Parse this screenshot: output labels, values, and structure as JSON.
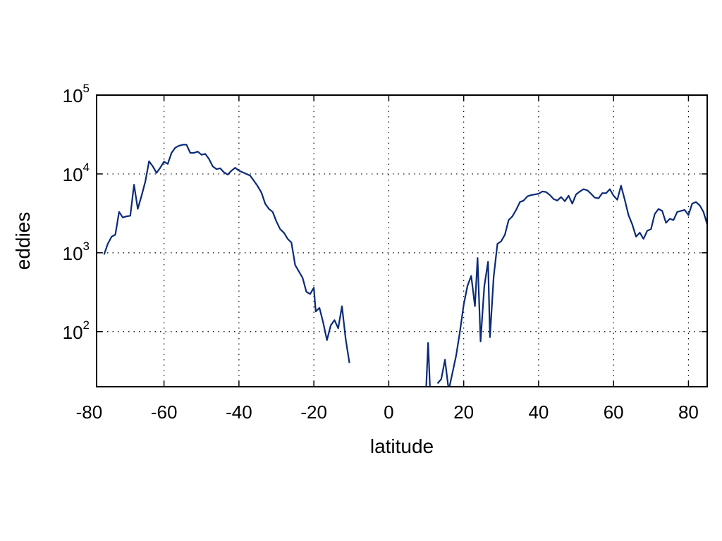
{
  "chart_data": {
    "type": "line",
    "xlabel": "latitude",
    "ylabel": "eddies",
    "xlim": [
      -78,
      85
    ],
    "ylim": [
      20,
      100000
    ],
    "yscale": "log",
    "grid": true,
    "xticks": [
      -80,
      -60,
      -40,
      -20,
      0,
      20,
      40,
      60,
      80
    ],
    "xtick_labels": [
      "-80",
      "-60",
      "-40",
      "-20",
      "0",
      "20",
      "40",
      "60",
      "80"
    ],
    "yticks": [
      100,
      1000,
      10000,
      100000
    ],
    "ytick_labels": [
      {
        "base": "10",
        "exp": "2"
      },
      {
        "base": "10",
        "exp": "3"
      },
      {
        "base": "10",
        "exp": "4"
      },
      {
        "base": "10",
        "exp": "5"
      }
    ],
    "line_color": "#0b2a78",
    "series": [
      {
        "segments": [
          [
            [
              -76,
              950
            ],
            [
              -75,
              1300
            ],
            [
              -74,
              1600
            ],
            [
              -73,
              1700
            ],
            [
              -72,
              3300
            ],
            [
              -71,
              2800
            ],
            [
              -70,
              2900
            ],
            [
              -69,
              2950
            ],
            [
              -68,
              7300
            ],
            [
              -67,
              3600
            ],
            [
              -66,
              5300
            ],
            [
              -65,
              8000
            ],
            [
              -64,
              14500
            ],
            [
              -63,
              12500
            ],
            [
              -62,
              10300
            ],
            [
              -61,
              12000
            ],
            [
              -60,
              14300
            ],
            [
              -59,
              13400
            ],
            [
              -58,
              18500
            ],
            [
              -57,
              21500
            ],
            [
              -56,
              22800
            ],
            [
              -55,
              23500
            ],
            [
              -54,
              23500
            ],
            [
              -53,
              18500
            ],
            [
              -52,
              18500
            ],
            [
              -51,
              19200
            ],
            [
              -50,
              17500
            ],
            [
              -49,
              18000
            ],
            [
              -48,
              15500
            ],
            [
              -47,
              12500
            ],
            [
              -46,
              11500
            ],
            [
              -45,
              11800
            ],
            [
              -44,
              10500
            ],
            [
              -43,
              9800
            ],
            [
              -42,
              11000
            ],
            [
              -41,
              12000
            ],
            [
              -40,
              11000
            ],
            [
              -39,
              10500
            ],
            [
              -38,
              10000
            ],
            [
              -37,
              9500
            ],
            [
              -36,
              8200
            ],
            [
              -35,
              7000
            ],
            [
              -34,
              5800
            ],
            [
              -33,
              4200
            ],
            [
              -32,
              3600
            ],
            [
              -31,
              3300
            ],
            [
              -30,
              2500
            ],
            [
              -29,
              2000
            ],
            [
              -28,
              1800
            ],
            [
              -27,
              1500
            ],
            [
              -26,
              1350
            ],
            [
              -25,
              700
            ],
            [
              -24,
              580
            ],
            [
              -23,
              480
            ],
            [
              -22,
              320
            ],
            [
              -21,
              300
            ],
            [
              -20,
              360
            ],
            [
              -19.5,
              180
            ],
            [
              -18.5,
              200
            ],
            [
              -17.5,
              130
            ],
            [
              -16.5,
              78
            ],
            [
              -15.5,
              120
            ],
            [
              -14.5,
              140
            ],
            [
              -13.5,
              110
            ],
            [
              -12.5,
              210
            ],
            [
              -11.5,
              80
            ],
            [
              -10.5,
              40
            ]
          ],
          [
            [
              10,
              20
            ],
            [
              10.5,
              72
            ],
            [
              11,
              20
            ]
          ],
          [
            [
              13,
              22
            ],
            [
              14,
              25
            ],
            [
              15,
              44
            ],
            [
              16,
              18
            ],
            [
              17,
              30
            ],
            [
              18,
              50
            ],
            [
              19,
              100
            ],
            [
              20,
              220
            ],
            [
              21,
              380
            ],
            [
              22,
              510
            ],
            [
              23,
              210
            ],
            [
              23.7,
              860
            ],
            [
              24.5,
              75
            ],
            [
              25.5,
              380
            ],
            [
              26.5,
              770
            ],
            [
              27,
              85
            ],
            [
              28,
              500
            ],
            [
              29,
              1300
            ],
            [
              30,
              1400
            ],
            [
              31,
              1700
            ],
            [
              32,
              2600
            ],
            [
              33,
              2900
            ],
            [
              34,
              3500
            ],
            [
              35,
              4400
            ],
            [
              36,
              4600
            ],
            [
              37,
              5200
            ],
            [
              38,
              5400
            ],
            [
              39,
              5500
            ],
            [
              40,
              5600
            ],
            [
              41,
              6000
            ],
            [
              42,
              5900
            ],
            [
              43,
              5400
            ],
            [
              44,
              4800
            ],
            [
              45,
              4600
            ],
            [
              46,
              5100
            ],
            [
              47,
              4500
            ],
            [
              48,
              5300
            ],
            [
              49,
              4200
            ],
            [
              50,
              5500
            ],
            [
              51,
              6000
            ],
            [
              52,
              6400
            ],
            [
              53,
              6200
            ],
            [
              54,
              5600
            ],
            [
              55,
              5000
            ],
            [
              56,
              4900
            ],
            [
              57,
              5700
            ],
            [
              58,
              5700
            ],
            [
              59,
              6400
            ],
            [
              60,
              5300
            ],
            [
              61,
              4700
            ],
            [
              62,
              7100
            ],
            [
              63,
              4700
            ],
            [
              64,
              3000
            ],
            [
              65,
              2300
            ],
            [
              66,
              1600
            ],
            [
              67,
              1800
            ],
            [
              68,
              1500
            ],
            [
              69,
              1900
            ],
            [
              70,
              2000
            ],
            [
              71,
              3100
            ],
            [
              72,
              3600
            ],
            [
              73,
              3400
            ],
            [
              74,
              2400
            ],
            [
              75,
              2700
            ],
            [
              76,
              2600
            ],
            [
              77,
              3300
            ],
            [
              78,
              3400
            ],
            [
              79,
              3500
            ],
            [
              80,
              3000
            ],
            [
              81,
              4200
            ],
            [
              82,
              4400
            ],
            [
              83,
              4000
            ],
            [
              84,
              3300
            ],
            [
              85,
              2300
            ]
          ]
        ]
      }
    ]
  }
}
